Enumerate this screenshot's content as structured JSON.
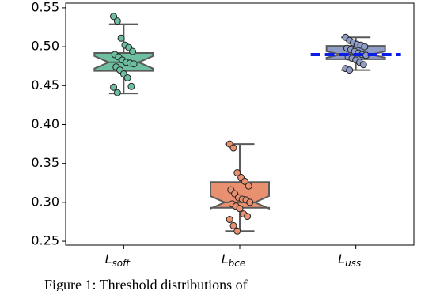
{
  "chart_data": {
    "type": "box",
    "category_symbol": "L",
    "categories": [
      "soft",
      "bce",
      "uss"
    ],
    "ylim": [
      0.245,
      0.556
    ],
    "yticks": [
      {
        "value": 0.25,
        "label": "0.25"
      },
      {
        "value": 0.3,
        "label": "0.30"
      },
      {
        "value": 0.35,
        "label": "0.35"
      },
      {
        "value": 0.4,
        "label": "0.40"
      },
      {
        "value": 0.45,
        "label": "0.45"
      },
      {
        "value": 0.5,
        "label": "0.50"
      },
      {
        "value": 0.55,
        "label": "0.55"
      }
    ],
    "boxes": [
      {
        "color": "#6dbf9f",
        "whisker_low": 0.44,
        "q1": 0.469,
        "median": 0.48,
        "q3": 0.492,
        "whisker_high": 0.529,
        "notch_low": 0.472,
        "notch_high": 0.488,
        "points": [
          0.539,
          0.533,
          0.511,
          0.502,
          0.499,
          0.494,
          0.49,
          0.487,
          0.483,
          0.48,
          0.479,
          0.478,
          0.474,
          0.47,
          0.465,
          0.46,
          0.449,
          0.448,
          0.441
        ]
      },
      {
        "color": "#e8906f",
        "whisker_low": 0.263,
        "q1": 0.293,
        "median": 0.3,
        "q3": 0.326,
        "whisker_high": 0.375,
        "notch_low": 0.292,
        "notch_high": 0.308,
        "points": [
          0.375,
          0.37,
          0.338,
          0.332,
          0.327,
          0.321,
          0.316,
          0.311,
          0.306,
          0.304,
          0.303,
          0.3,
          0.298,
          0.295,
          0.292,
          0.285,
          0.282,
          0.278,
          0.27,
          0.263
        ]
      },
      {
        "color": "#8e9cc6",
        "whisker_low": 0.47,
        "q1": 0.484,
        "median": 0.49,
        "q3": 0.501,
        "whisker_high": 0.512,
        "notch_low": 0.486,
        "notch_high": 0.494,
        "points": [
          0.512,
          0.508,
          0.505,
          0.503,
          0.502,
          0.5,
          0.498,
          0.496,
          0.494,
          0.492,
          0.49,
          0.489,
          0.487,
          0.485,
          0.483,
          0.48,
          0.477,
          0.472,
          0.47
        ]
      }
    ],
    "reference_lines": [
      {
        "box": 2,
        "value": 0.49,
        "color": "#0a1ee6"
      }
    ],
    "caption": "Figure 1: Threshold distributions of"
  }
}
